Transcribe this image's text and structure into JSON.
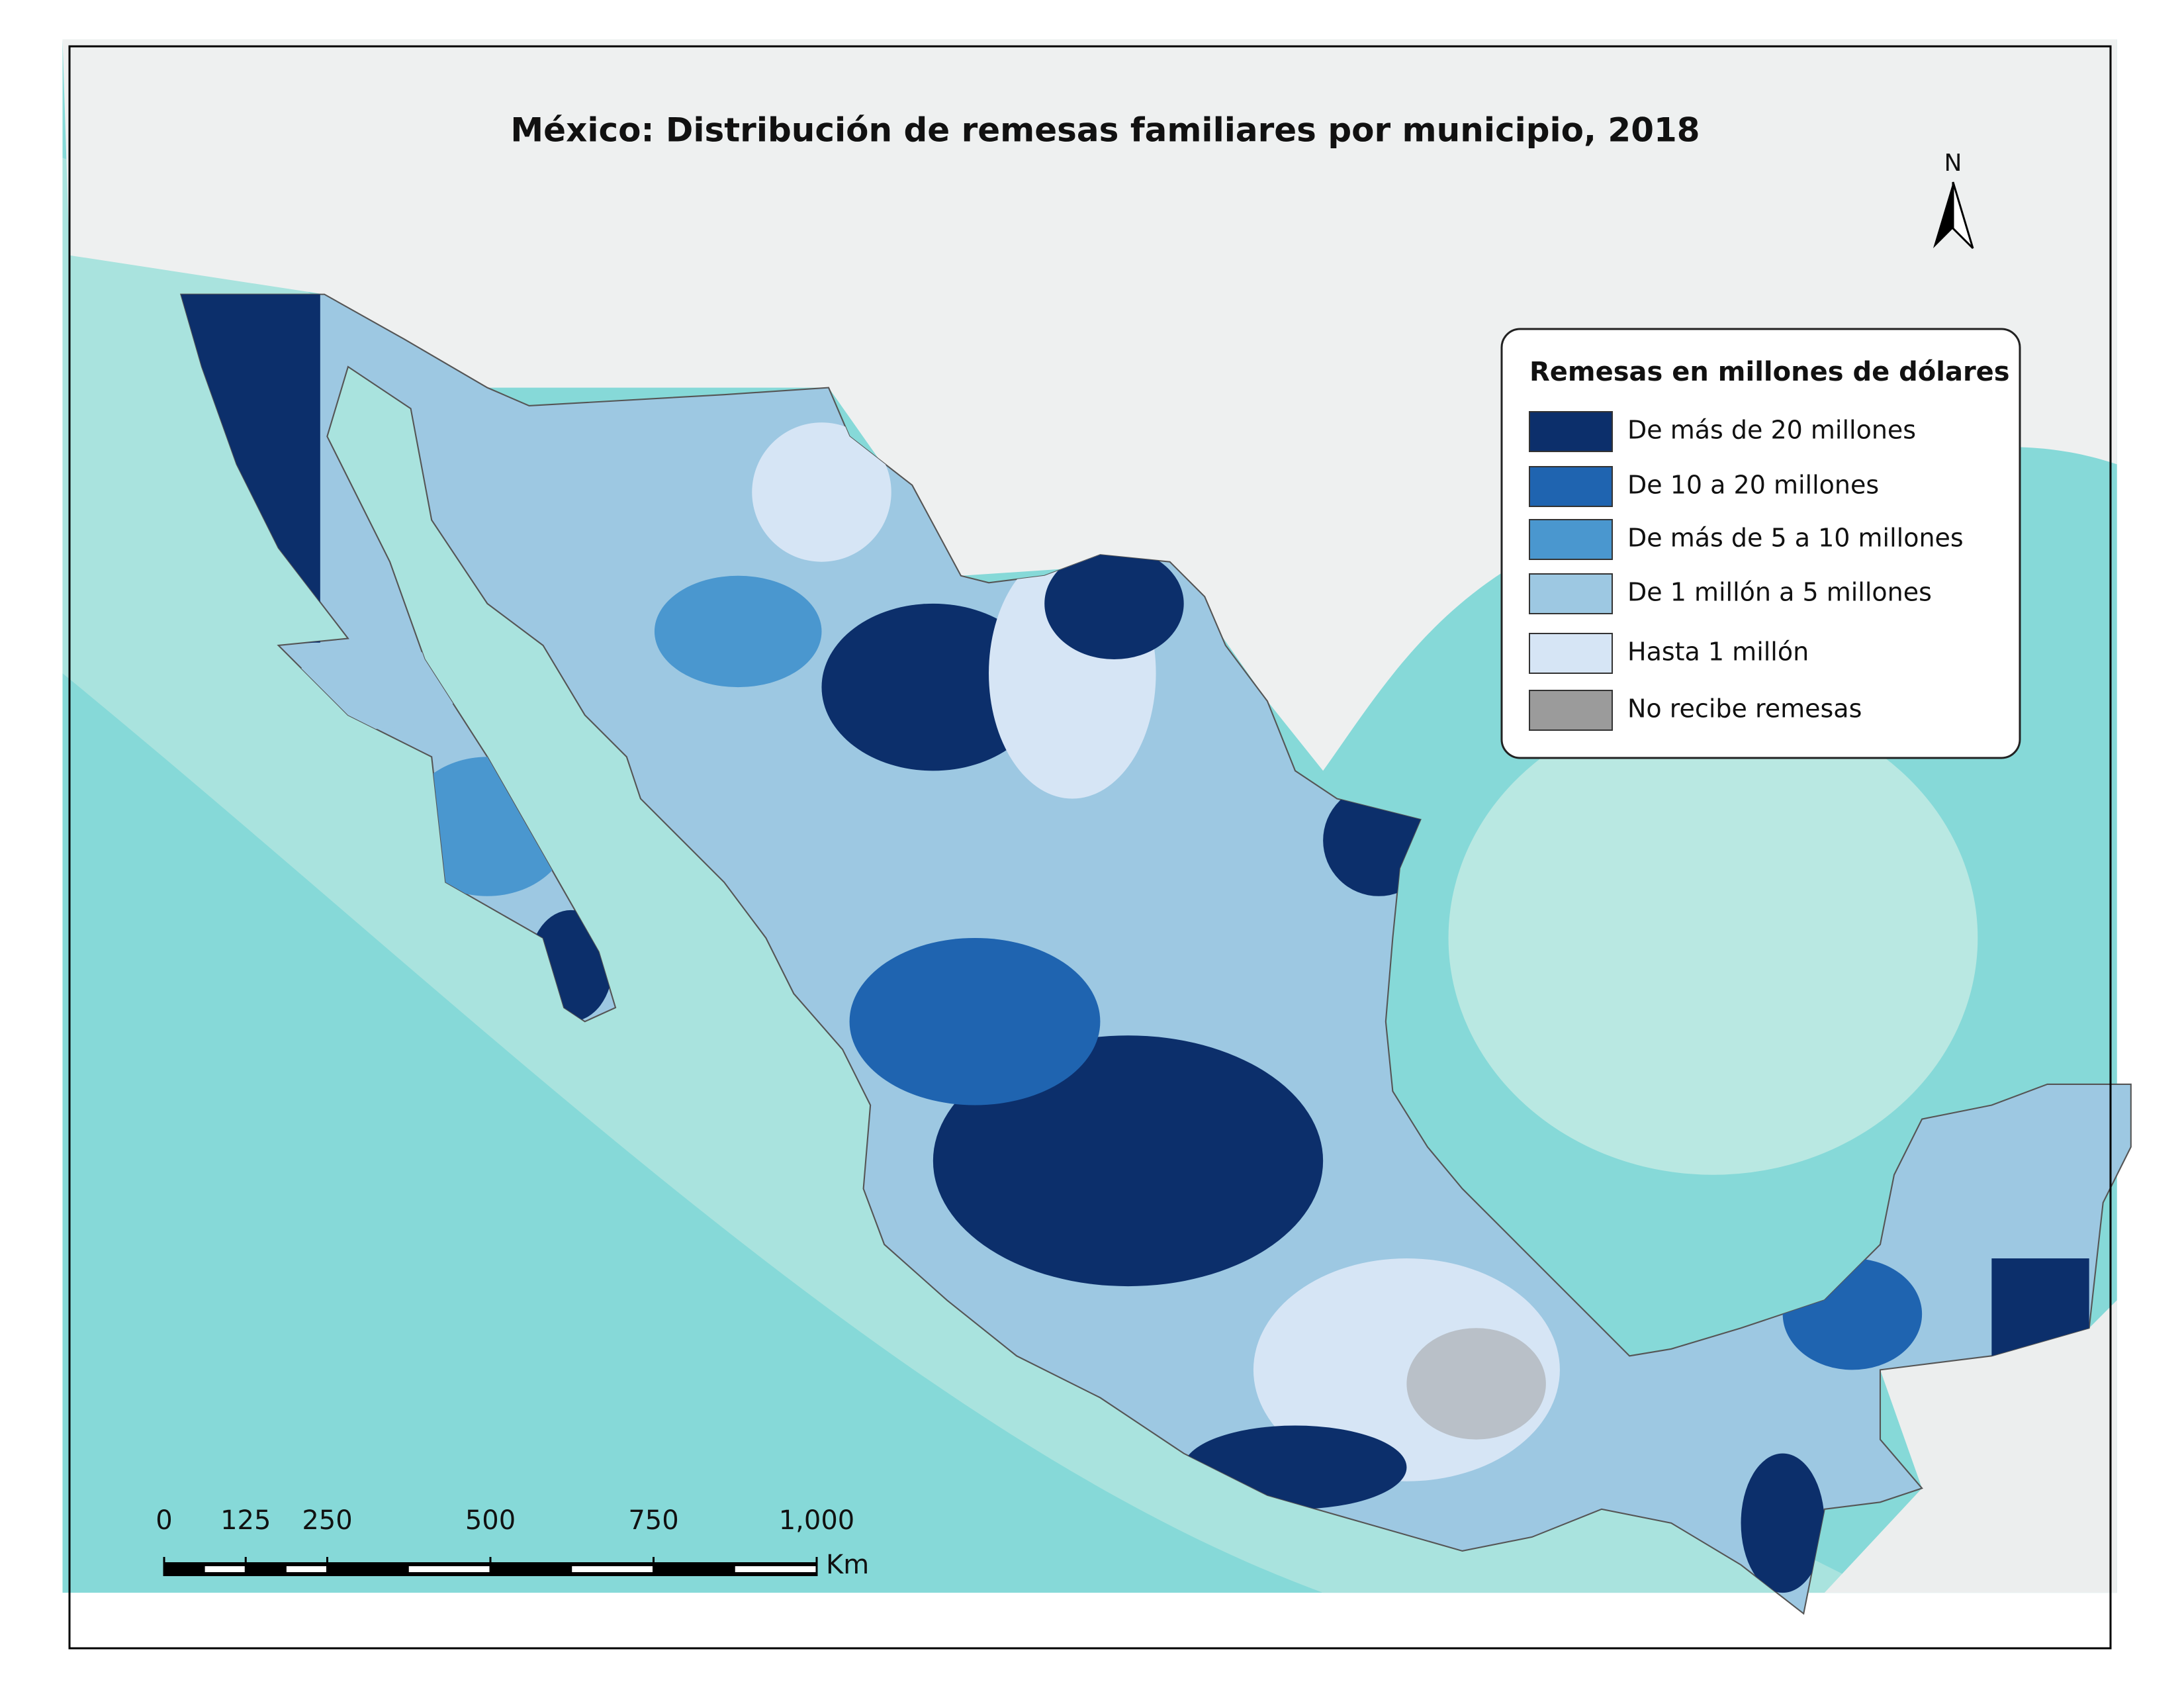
{
  "title": "México: Distribución de remesas familiares por municipio, 2018",
  "north": "N",
  "legend": {
    "title": "Remesas en millones de dólares",
    "items": [
      {
        "label": "De más de 20 millones",
        "color": "#0c2f6b"
      },
      {
        "label": "De 10 a 20 millones",
        "color": "#1f64b0"
      },
      {
        "label": "De más de 5 a 10 millones",
        "color": "#4a97cf"
      },
      {
        "label": "De 1 millón a 5 millones",
        "color": "#9dc8e2"
      },
      {
        "label": "Hasta 1 millón",
        "color": "#d6e5f5"
      },
      {
        "label": "No recibe remesas",
        "color": "#9b9b9b"
      }
    ]
  },
  "scale_bar": {
    "unit": "Km",
    "ticks": [
      0,
      125,
      250,
      500,
      750,
      {
        "value": 1000,
        "label": "1,000"
      }
    ]
  }
}
